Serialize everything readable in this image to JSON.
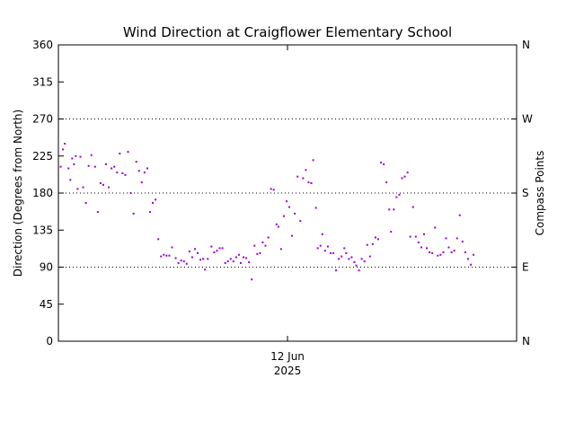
{
  "chart_data": {
    "type": "scatter",
    "title": "Wind Direction at Craigflower Elementary School",
    "ylabel": "Direction (Degrees from North)",
    "y2label": "Compass Points",
    "ylim": [
      0,
      360
    ],
    "xlim": [
      0,
      1
    ],
    "yticks": [
      "0",
      "45",
      "90",
      "135",
      "180",
      "225",
      "270",
      "315",
      "360"
    ],
    "y2ticks": [
      {
        "value": 0,
        "label": "N"
      },
      {
        "value": 90,
        "label": "E"
      },
      {
        "value": 180,
        "label": "S"
      },
      {
        "value": 270,
        "label": "W"
      },
      {
        "value": 360,
        "label": "N"
      }
    ],
    "xticks": [
      {
        "value": 0.5,
        "label": "12 Jun",
        "sublabel": "2025"
      }
    ],
    "gridlines_y": [
      90,
      180,
      270
    ],
    "marker_color": "#9900cc",
    "points": [
      [
        0.005,
        212
      ],
      [
        0.01,
        233
      ],
      [
        0.014,
        240
      ],
      [
        0.022,
        210
      ],
      [
        0.026,
        196
      ],
      [
        0.03,
        222
      ],
      [
        0.034,
        215
      ],
      [
        0.038,
        225
      ],
      [
        0.042,
        185
      ],
      [
        0.048,
        224
      ],
      [
        0.054,
        187
      ],
      [
        0.06,
        168
      ],
      [
        0.066,
        213
      ],
      [
        0.072,
        226
      ],
      [
        0.08,
        212
      ],
      [
        0.086,
        157
      ],
      [
        0.092,
        192
      ],
      [
        0.098,
        190
      ],
      [
        0.104,
        215
      ],
      [
        0.11,
        187
      ],
      [
        0.116,
        210
      ],
      [
        0.122,
        212
      ],
      [
        0.128,
        205
      ],
      [
        0.134,
        228
      ],
      [
        0.14,
        204
      ],
      [
        0.146,
        202
      ],
      [
        0.152,
        230
      ],
      [
        0.158,
        180
      ],
      [
        0.164,
        155
      ],
      [
        0.17,
        218
      ],
      [
        0.176,
        207
      ],
      [
        0.182,
        193
      ],
      [
        0.188,
        205
      ],
      [
        0.194,
        210
      ],
      [
        0.2,
        157
      ],
      [
        0.206,
        168
      ],
      [
        0.212,
        172
      ],
      [
        0.218,
        124
      ],
      [
        0.224,
        103
      ],
      [
        0.23,
        105
      ],
      [
        0.236,
        104
      ],
      [
        0.242,
        104
      ],
      [
        0.248,
        114
      ],
      [
        0.256,
        101
      ],
      [
        0.262,
        95
      ],
      [
        0.268,
        98
      ],
      [
        0.274,
        97
      ],
      [
        0.28,
        94
      ],
      [
        0.286,
        109
      ],
      [
        0.292,
        102
      ],
      [
        0.298,
        112
      ],
      [
        0.304,
        107
      ],
      [
        0.31,
        99
      ],
      [
        0.316,
        100
      ],
      [
        0.32,
        87
      ],
      [
        0.326,
        100
      ],
      [
        0.334,
        115
      ],
      [
        0.34,
        108
      ],
      [
        0.346,
        110
      ],
      [
        0.352,
        113
      ],
      [
        0.358,
        113
      ],
      [
        0.364,
        95
      ],
      [
        0.37,
        97
      ],
      [
        0.376,
        100
      ],
      [
        0.382,
        97
      ],
      [
        0.388,
        102
      ],
      [
        0.394,
        105
      ],
      [
        0.398,
        95
      ],
      [
        0.404,
        102
      ],
      [
        0.41,
        101
      ],
      [
        0.416,
        96
      ],
      [
        0.422,
        75
      ],
      [
        0.428,
        116
      ],
      [
        0.434,
        106
      ],
      [
        0.44,
        107
      ],
      [
        0.446,
        120
      ],
      [
        0.452,
        116
      ],
      [
        0.458,
        126
      ],
      [
        0.464,
        185
      ],
      [
        0.47,
        184
      ],
      [
        0.476,
        142
      ],
      [
        0.48,
        139
      ],
      [
        0.486,
        112
      ],
      [
        0.492,
        152
      ],
      [
        0.498,
        170
      ],
      [
        0.504,
        163
      ],
      [
        0.51,
        128
      ],
      [
        0.516,
        155
      ],
      [
        0.522,
        200
      ],
      [
        0.528,
        146
      ],
      [
        0.534,
        198
      ],
      [
        0.54,
        208
      ],
      [
        0.546,
        193
      ],
      [
        0.552,
        192
      ],
      [
        0.556,
        220
      ],
      [
        0.562,
        162
      ],
      [
        0.566,
        113
      ],
      [
        0.572,
        116
      ],
      [
        0.576,
        130
      ],
      [
        0.582,
        110
      ],
      [
        0.588,
        115
      ],
      [
        0.594,
        107
      ],
      [
        0.6,
        107
      ],
      [
        0.606,
        86
      ],
      [
        0.612,
        100
      ],
      [
        0.618,
        103
      ],
      [
        0.624,
        113
      ],
      [
        0.628,
        107
      ],
      [
        0.634,
        100
      ],
      [
        0.64,
        102
      ],
      [
        0.646,
        96
      ],
      [
        0.65,
        92
      ],
      [
        0.656,
        86
      ],
      [
        0.662,
        100
      ],
      [
        0.668,
        97
      ],
      [
        0.674,
        117
      ],
      [
        0.68,
        103
      ],
      [
        0.686,
        118
      ],
      [
        0.692,
        126
      ],
      [
        0.698,
        124
      ],
      [
        0.704,
        217
      ],
      [
        0.71,
        215
      ],
      [
        0.716,
        193
      ],
      [
        0.722,
        160
      ],
      [
        0.726,
        133
      ],
      [
        0.732,
        160
      ],
      [
        0.738,
        175
      ],
      [
        0.744,
        178
      ],
      [
        0.75,
        198
      ],
      [
        0.756,
        200
      ],
      [
        0.762,
        205
      ],
      [
        0.768,
        127
      ],
      [
        0.774,
        163
      ],
      [
        0.78,
        127
      ],
      [
        0.786,
        120
      ],
      [
        0.792,
        114
      ],
      [
        0.798,
        130
      ],
      [
        0.804,
        113
      ],
      [
        0.81,
        108
      ],
      [
        0.816,
        107
      ],
      [
        0.822,
        138
      ],
      [
        0.828,
        104
      ],
      [
        0.834,
        105
      ],
      [
        0.84,
        108
      ],
      [
        0.846,
        125
      ],
      [
        0.852,
        114
      ],
      [
        0.858,
        108
      ],
      [
        0.864,
        110
      ],
      [
        0.87,
        125
      ],
      [
        0.876,
        153
      ],
      [
        0.882,
        121
      ],
      [
        0.888,
        108
      ],
      [
        0.894,
        100
      ],
      [
        0.9,
        93
      ],
      [
        0.906,
        105
      ]
    ]
  }
}
